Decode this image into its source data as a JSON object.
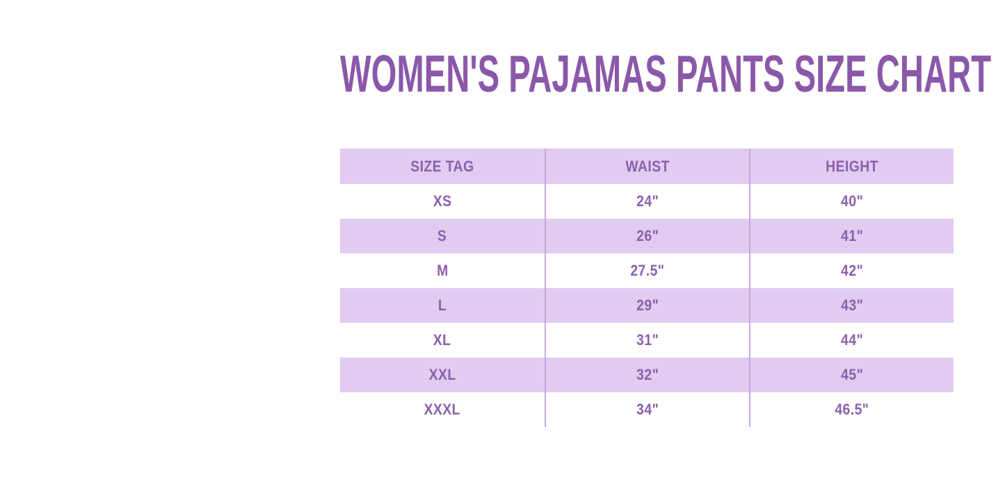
{
  "title": "WOMEN'S PAJAMAS PANTS SIZE CHART",
  "colors": {
    "background": "#FFFFFF",
    "title_text": "#8B58A9",
    "table_text": "#8C5FAB",
    "row_fill": "#E1CBF0",
    "divider": "#C7A7E0"
  },
  "chart_data": {
    "type": "table",
    "title": "WOMEN'S PAJAMAS PANTS SIZE CHART",
    "columns": [
      "SIZE TAG",
      "WAIST",
      "HEIGHT"
    ],
    "rows": [
      [
        "XS",
        "24\"",
        "40\""
      ],
      [
        "S",
        "26\"",
        "41\""
      ],
      [
        "M",
        "27.5\"",
        "42\""
      ],
      [
        "L",
        "29\"",
        "43\""
      ],
      [
        "XL",
        "31\"",
        "44\""
      ],
      [
        "XXL",
        "32\"",
        "45\""
      ],
      [
        "XXXL",
        "34\"",
        "46.5\""
      ]
    ],
    "layout_hints": {
      "header_fill": "lavender",
      "row_fill_pattern": "alternating lavender/white starting white after header",
      "borders": "vertical column dividers only, no horizontal or outer borders"
    }
  }
}
